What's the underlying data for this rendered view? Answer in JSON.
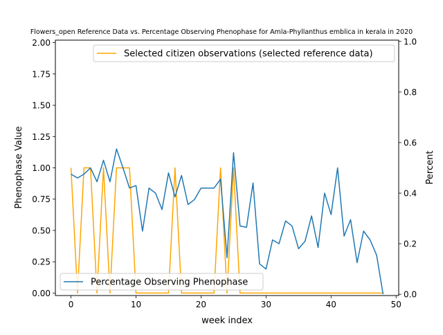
{
  "chart_data": {
    "type": "line",
    "title": "Flowers_open Reference Data vs. Percentage Observing Phenophase for Amla-Phyllanthus emblica in kerala in 2020",
    "xlabel": "week index",
    "ylabel_left": "Phenophase Value",
    "ylabel_right": "Percent",
    "xlim": [
      -2.4,
      50.4
    ],
    "ylim_left": [
      -0.02,
      2.02
    ],
    "ylim_right": [
      -0.005,
      1.005
    ],
    "x_ticks": [
      0,
      10,
      20,
      30,
      40,
      50
    ],
    "y_ticks_left": [
      0.0,
      0.25,
      0.5,
      0.75,
      1.0,
      1.25,
      1.5,
      1.75,
      2.0
    ],
    "y_ticks_left_labels": [
      "0.00",
      "0.25",
      "0.50",
      "0.75",
      "1.00",
      "1.25",
      "1.50",
      "1.75",
      "2.00"
    ],
    "y_ticks_right": [
      0.0,
      0.2,
      0.4,
      0.6,
      0.8,
      1.0
    ],
    "y_ticks_right_labels": [
      "0.0",
      "0.2",
      "0.4",
      "0.6",
      "0.8",
      "1.0"
    ],
    "grid": false,
    "series": [
      {
        "name": "Selected citizen observations (selected reference data)",
        "axis": "left",
        "color": "#ffa500",
        "legend_position": "top-right",
        "x": [
          0,
          1,
          2,
          3,
          4,
          5,
          6,
          7,
          8,
          9,
          10,
          11,
          12,
          13,
          14,
          15,
          16,
          17,
          18,
          19,
          20,
          21,
          22,
          23,
          24,
          25,
          26,
          27,
          28,
          29,
          30,
          31,
          32,
          33,
          34,
          35,
          36,
          37,
          38,
          39,
          40,
          41,
          42,
          43,
          44,
          45,
          46,
          47,
          48
        ],
        "values": [
          1,
          0,
          1,
          1,
          0,
          1,
          0,
          1,
          1,
          1,
          0,
          0,
          0,
          0,
          0,
          0,
          1,
          0,
          0,
          0,
          0,
          0,
          0,
          1,
          0,
          1,
          0,
          0,
          0,
          0,
          0,
          0,
          0,
          0,
          0,
          0,
          0,
          0,
          0,
          0,
          0,
          0,
          0,
          0,
          0,
          0,
          0,
          0,
          0
        ]
      },
      {
        "name": "Percentage Observing Phenophase",
        "axis": "right",
        "color": "#1f77b4",
        "legend_position": "bottom-left",
        "x": [
          0,
          1,
          2,
          3,
          4,
          5,
          6,
          7,
          8,
          9,
          10,
          11,
          12,
          13,
          14,
          15,
          16,
          17,
          18,
          19,
          20,
          21,
          22,
          23,
          24,
          25,
          26,
          27,
          28,
          29,
          30,
          31,
          32,
          33,
          34,
          35,
          36,
          37,
          38,
          39,
          40,
          41,
          42,
          43,
          44,
          45,
          46,
          47,
          48
        ],
        "values": [
          0.475,
          0.46,
          0.475,
          0.5,
          0.445,
          0.53,
          0.445,
          0.575,
          0.5,
          0.42,
          0.43,
          0.25,
          0.42,
          0.4,
          0.335,
          0.48,
          0.385,
          0.47,
          0.355,
          0.375,
          0.42,
          0.42,
          0.42,
          0.455,
          0.145,
          0.56,
          0.27,
          0.265,
          0.44,
          0.12,
          0.1,
          0.215,
          0.2,
          0.29,
          0.27,
          0.18,
          0.21,
          0.31,
          0.185,
          0.4,
          0.315,
          0.5,
          0.23,
          0.295,
          0.125,
          0.25,
          0.215,
          0.155,
          0.0
        ]
      }
    ]
  }
}
